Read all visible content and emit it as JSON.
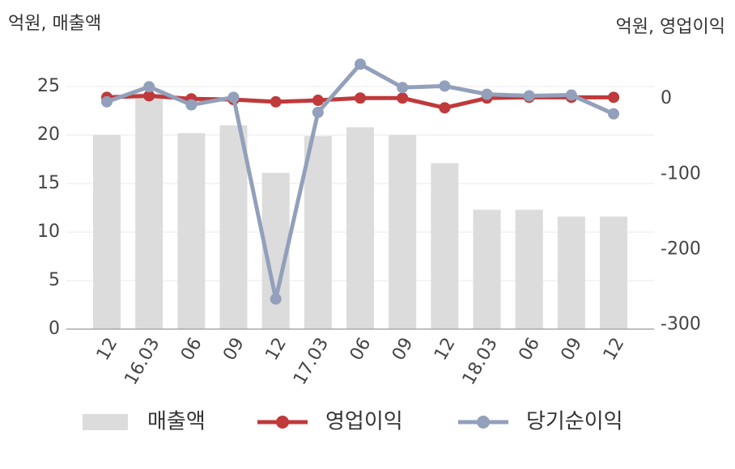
{
  "chart_data": {
    "type": "bar-line",
    "left_unit_label": "억원, 매출액",
    "right_unit_label": "억원, 영업이익",
    "categories": [
      "12",
      "16.03",
      "06",
      "09",
      "12",
      "17.03",
      "06",
      "09",
      "12",
      "18.03",
      "06",
      "09",
      "12"
    ],
    "series": [
      {
        "name": "매출액",
        "type": "bar",
        "color": "#dcdcdc",
        "values": [
          20,
          24.3,
          20.2,
          21,
          16.1,
          19.9,
          20.8,
          20,
          17.1,
          12.3,
          12.3,
          11.6,
          11.6
        ]
      },
      {
        "name": "영업이익",
        "type": "line",
        "axis": "y2",
        "color": "#c0393b",
        "values": [
          2,
          4,
          0,
          -1,
          -4,
          -2,
          1,
          1,
          -12,
          1,
          2,
          2,
          2
        ]
      },
      {
        "name": "당기순이익",
        "type": "line",
        "axis": "y2",
        "color": "#93a0bb",
        "values": [
          -4,
          16,
          -8,
          2,
          -266,
          -18,
          46,
          15,
          17,
          6,
          4,
          5,
          -20
        ]
      }
    ],
    "ylim": [
      0,
      28
    ],
    "yticks": [
      0,
      5,
      10,
      15,
      20,
      25
    ],
    "y2lim": [
      -306,
      55
    ],
    "y2ticks": [
      -300,
      -200,
      -100,
      0
    ],
    "grid": true
  }
}
